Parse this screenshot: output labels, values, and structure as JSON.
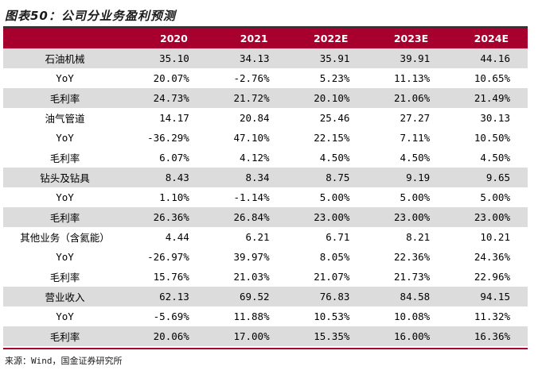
{
  "title": "图表50：公司分业务盈利预测",
  "header": {
    "label": "",
    "years": [
      "2020",
      "2021",
      "2022E",
      "2023E",
      "2024E"
    ]
  },
  "rows": [
    {
      "label": "石油机械",
      "values": [
        "35.10",
        "34.13",
        "35.91",
        "39.91",
        "44.16"
      ],
      "shade": true
    },
    {
      "label": "YoY",
      "values": [
        "20.07%",
        "-2.76%",
        "5.23%",
        "11.13%",
        "10.65%"
      ],
      "shade": false
    },
    {
      "label": "毛利率",
      "values": [
        "24.73%",
        "21.72%",
        "20.10%",
        "21.06%",
        "21.49%"
      ],
      "shade": true
    },
    {
      "label": "油气管道",
      "values": [
        "14.17",
        "20.84",
        "25.46",
        "27.27",
        "30.13"
      ],
      "shade": false
    },
    {
      "label": "YoY",
      "values": [
        "-36.29%",
        "47.10%",
        "22.15%",
        "7.11%",
        "10.50%"
      ],
      "shade": false
    },
    {
      "label": "毛利率",
      "values": [
        "6.07%",
        "4.12%",
        "4.50%",
        "4.50%",
        "4.50%"
      ],
      "shade": false
    },
    {
      "label": "钻头及钻具",
      "values": [
        "8.43",
        "8.34",
        "8.75",
        "9.19",
        "9.65"
      ],
      "shade": true
    },
    {
      "label": "YoY",
      "values": [
        "1.10%",
        "-1.14%",
        "5.00%",
        "5.00%",
        "5.00%"
      ],
      "shade": false
    },
    {
      "label": "毛利率",
      "values": [
        "26.36%",
        "26.84%",
        "23.00%",
        "23.00%",
        "23.00%"
      ],
      "shade": true
    },
    {
      "label": "其他业务（含氦能）",
      "values": [
        "4.44",
        "6.21",
        "6.71",
        "8.21",
        "10.21"
      ],
      "shade": false
    },
    {
      "label": "YoY",
      "values": [
        "-26.97%",
        "39.97%",
        "8.05%",
        "22.36%",
        "24.36%"
      ],
      "shade": false
    },
    {
      "label": "毛利率",
      "values": [
        "15.76%",
        "21.03%",
        "21.07%",
        "21.73%",
        "22.96%"
      ],
      "shade": false
    },
    {
      "label": "营业收入",
      "values": [
        "62.13",
        "69.52",
        "76.83",
        "84.58",
        "94.15"
      ],
      "shade": true
    },
    {
      "label": "YoY",
      "values": [
        "-5.69%",
        "11.88%",
        "10.53%",
        "10.08%",
        "11.32%"
      ],
      "shade": false
    },
    {
      "label": "毛利率",
      "values": [
        "20.06%",
        "17.00%",
        "15.35%",
        "16.00%",
        "16.36%"
      ],
      "shade": true
    }
  ],
  "source": "来源：Wind，国金证券研究所",
  "colors": {
    "header_bg": "#a8002e",
    "shade": "#dcdcdc",
    "rule": "#a8002e"
  }
}
